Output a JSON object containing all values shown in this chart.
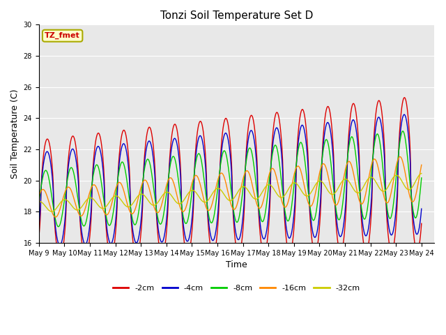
{
  "title": "Tonzi Soil Temperature Set D",
  "xlabel": "Time",
  "ylabel": "Soil Temperature (C)",
  "ylim": [
    16,
    30
  ],
  "background_color": "#ffffff",
  "plot_bg_color": "#e8e8e8",
  "grid_color": "#ffffff",
  "annotation_text": "TZ_fmet",
  "annotation_bg": "#ffffcc",
  "annotation_border": "#aaaa00",
  "annotation_text_color": "#cc0000",
  "colors": {
    "-2cm": "#dd0000",
    "-4cm": "#0000cc",
    "-8cm": "#00cc00",
    "-16cm": "#ff8800",
    "-32cm": "#cccc00"
  },
  "legend_labels": [
    "-2cm",
    "-4cm",
    "-8cm",
    "-16cm",
    "-32cm"
  ],
  "num_points": 720,
  "start_day": 9,
  "end_day": 24
}
